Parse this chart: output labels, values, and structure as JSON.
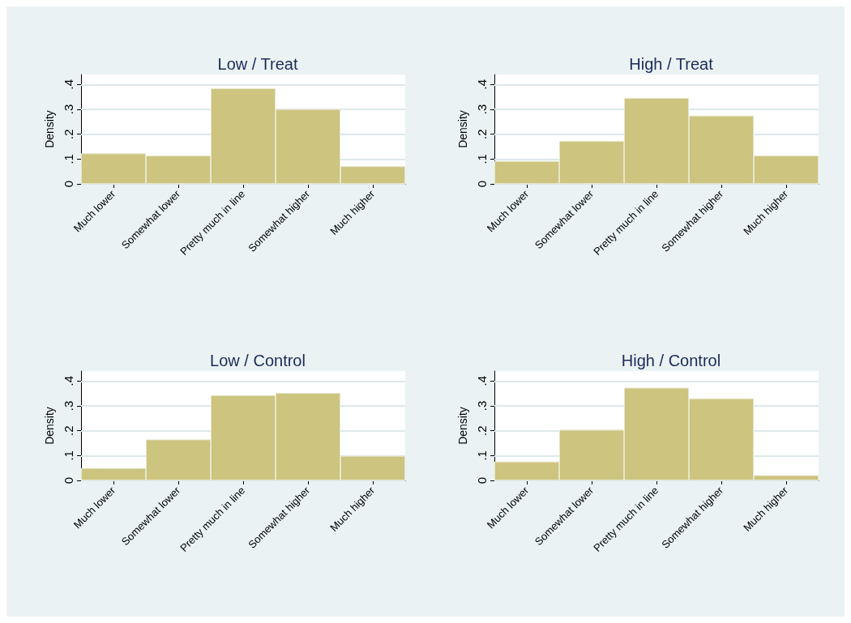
{
  "chart_data": [
    {
      "type": "bar",
      "title": "Low / Treat",
      "ylabel": "Density",
      "categories": [
        "Much lower",
        "Somewhat lower",
        "Pretty much in line",
        "Somewhat higher",
        "Much higher"
      ],
      "values": [
        0.123,
        0.114,
        0.385,
        0.301,
        0.071
      ],
      "color": "#ccc47f",
      "ylim": [
        0,
        0.44
      ],
      "yticks": [
        {
          "value": 0,
          "label": "0"
        },
        {
          "value": 0.1,
          "label": ".1"
        },
        {
          "value": 0.2,
          "label": ".2"
        },
        {
          "value": 0.3,
          "label": ".3"
        },
        {
          "value": 0.4,
          "label": ".4"
        }
      ],
      "grid": "y"
    },
    {
      "type": "bar",
      "title": "High / Treat",
      "ylabel": "Density",
      "categories": [
        "Much lower",
        "Somewhat lower",
        "Pretty much in line",
        "Somewhat higher",
        "Much higher"
      ],
      "values": [
        0.092,
        0.173,
        0.346,
        0.275,
        0.114
      ],
      "color": "#ccc47f",
      "ylim": [
        0,
        0.44
      ],
      "yticks": [
        {
          "value": 0,
          "label": "0"
        },
        {
          "value": 0.1,
          "label": ".1"
        },
        {
          "value": 0.2,
          "label": ".2"
        },
        {
          "value": 0.3,
          "label": ".3"
        },
        {
          "value": 0.4,
          "label": ".4"
        }
      ],
      "grid": "y"
    },
    {
      "type": "bar",
      "title": "Low / Control",
      "ylabel": "Density",
      "categories": [
        "Much lower",
        "Somewhat lower",
        "Pretty much in line",
        "Somewhat higher",
        "Much higher"
      ],
      "values": [
        0.05,
        0.165,
        0.343,
        0.352,
        0.099
      ],
      "color": "#ccc47f",
      "ylim": [
        0,
        0.44
      ],
      "yticks": [
        {
          "value": 0,
          "label": "0"
        },
        {
          "value": 0.1,
          "label": ".1"
        },
        {
          "value": 0.2,
          "label": ".2"
        },
        {
          "value": 0.3,
          "label": ".3"
        },
        {
          "value": 0.4,
          "label": ".4"
        }
      ],
      "grid": "y"
    },
    {
      "type": "bar",
      "title": "High / Control",
      "ylabel": "Density",
      "categories": [
        "Much lower",
        "Somewhat lower",
        "Pretty much in line",
        "Somewhat higher",
        "Much higher"
      ],
      "values": [
        0.076,
        0.204,
        0.373,
        0.33,
        0.021
      ],
      "color": "#ccc47f",
      "ylim": [
        0,
        0.44
      ],
      "yticks": [
        {
          "value": 0,
          "label": "0"
        },
        {
          "value": 0.1,
          "label": ".1"
        },
        {
          "value": 0.2,
          "label": ".2"
        },
        {
          "value": 0.3,
          "label": ".3"
        },
        {
          "value": 0.4,
          "label": ".4"
        }
      ],
      "grid": "y"
    }
  ]
}
